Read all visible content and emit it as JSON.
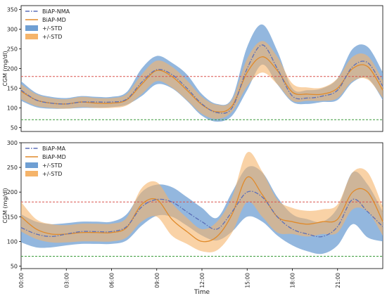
{
  "colors": {
    "nma_line": "#5b6fb8",
    "md_line": "#e08a2a",
    "nma_band": "#6f9fd3",
    "md_band": "#f5b46a",
    "upper_threshold": "#d9534f",
    "lower_threshold": "#3a9a3a"
  },
  "thresholds": {
    "upper": 180,
    "lower": 70
  },
  "xaxis": {
    "label": "Time",
    "range": [
      0,
      24
    ],
    "ticks": [
      0,
      3,
      6,
      9,
      12,
      15,
      18,
      21
    ],
    "tick_labels": [
      "00:00",
      "03:00",
      "06:00",
      "09:00",
      "12:00",
      "15:00",
      "18:00",
      "21:00"
    ]
  },
  "chart_data": [
    {
      "type": "line",
      "ylabel": "CGM (mg/dl)",
      "ylim": [
        40,
        360
      ],
      "yticks": [
        50,
        100,
        150,
        200,
        250,
        300,
        350
      ],
      "grid": false,
      "legend": "top-left",
      "legend_labels": [
        "BiAP-NMA",
        "BiAP-MD",
        "+/-STD",
        "+/-STD"
      ],
      "x": [
        0,
        1,
        2,
        3,
        4,
        5,
        6,
        7,
        8,
        9,
        10,
        11,
        12,
        13,
        14,
        15,
        16,
        17,
        18,
        19,
        20,
        21,
        22,
        23,
        24
      ],
      "series": [
        {
          "name": "BiAP-NMA",
          "style": "dashdot",
          "values": [
            145,
            120,
            112,
            110,
            115,
            115,
            115,
            122,
            165,
            197,
            185,
            150,
            110,
            88,
            100,
            200,
            260,
            200,
            130,
            125,
            130,
            145,
            205,
            215,
            155
          ],
          "std_lower": [
            118,
            102,
            98,
            98,
            100,
            100,
            102,
            108,
            130,
            160,
            150,
            118,
            80,
            65,
            80,
            145,
            210,
            160,
            115,
            110,
            115,
            120,
            165,
            175,
            120
          ],
          "std_upper": [
            168,
            138,
            128,
            125,
            130,
            128,
            128,
            140,
            200,
            232,
            215,
            185,
            135,
            110,
            125,
            255,
            312,
            245,
            150,
            145,
            150,
            175,
            250,
            255,
            190
          ]
        },
        {
          "name": "BiAP-MD",
          "style": "solid",
          "values": [
            142,
            120,
            112,
            110,
            115,
            112,
            112,
            120,
            160,
            195,
            180,
            145,
            108,
            90,
            105,
            190,
            230,
            195,
            140,
            135,
            135,
            150,
            200,
            205,
            145
          ],
          "std_lower": [
            122,
            105,
            100,
            98,
            102,
            100,
            100,
            106,
            135,
            168,
            152,
            120,
            85,
            72,
            90,
            155,
            190,
            160,
            118,
            118,
            118,
            125,
            168,
            172,
            125
          ],
          "std_upper": [
            160,
            135,
            125,
            122,
            128,
            125,
            125,
            135,
            185,
            220,
            205,
            170,
            128,
            108,
            120,
            225,
            270,
            230,
            162,
            152,
            152,
            175,
            230,
            232,
            170
          ]
        }
      ]
    },
    {
      "type": "line",
      "ylabel": "CGM (mg/dl)",
      "ylim": [
        45,
        300
      ],
      "yticks": [
        50,
        100,
        150,
        200,
        250,
        300
      ],
      "grid": false,
      "legend": "top-left",
      "legend_labels": [
        "BiAP-MA",
        "BiAP-MD",
        "+/-STD",
        "+/-STD"
      ],
      "x": [
        0,
        1,
        2,
        3,
        4,
        5,
        6,
        7,
        8,
        9,
        10,
        11,
        12,
        13,
        14,
        15,
        16,
        17,
        18,
        19,
        20,
        21,
        22,
        23,
        24
      ],
      "series": [
        {
          "name": "BiAP-MA",
          "style": "dashdot",
          "values": [
            128,
            115,
            110,
            115,
            120,
            120,
            120,
            130,
            170,
            185,
            180,
            160,
            140,
            125,
            160,
            200,
            190,
            150,
            125,
            115,
            110,
            130,
            185,
            160,
            130
          ],
          "std_lower": [
            98,
            88,
            88,
            92,
            95,
            95,
            95,
            102,
            132,
            152,
            150,
            132,
            112,
            102,
            120,
            150,
            140,
            112,
            92,
            80,
            75,
            92,
            135,
            108,
            100
          ],
          "std_upper": [
            155,
            140,
            135,
            137,
            140,
            140,
            140,
            155,
            200,
            215,
            210,
            190,
            168,
            148,
            200,
            250,
            240,
            190,
            155,
            145,
            140,
            168,
            240,
            215,
            160
          ]
        },
        {
          "name": "BiAP-MD",
          "style": "solid",
          "values": [
            150,
            125,
            115,
            115,
            118,
            118,
            118,
            128,
            175,
            185,
            145,
            120,
            100,
            110,
            155,
            230,
            195,
            150,
            140,
            135,
            140,
            145,
            200,
            200,
            140
          ],
          "std_lower": [
            120,
            105,
            98,
            98,
            100,
            100,
            100,
            108,
            140,
            150,
            112,
            95,
            80,
            82,
            118,
            180,
            150,
            118,
            115,
            110,
            115,
            118,
            165,
            160,
            112
          ],
          "std_upper": [
            180,
            145,
            135,
            133,
            136,
            136,
            136,
            148,
            208,
            220,
            178,
            148,
            125,
            140,
            190,
            280,
            242,
            185,
            168,
            162,
            165,
            175,
            240,
            240,
            170
          ]
        }
      ]
    }
  ]
}
